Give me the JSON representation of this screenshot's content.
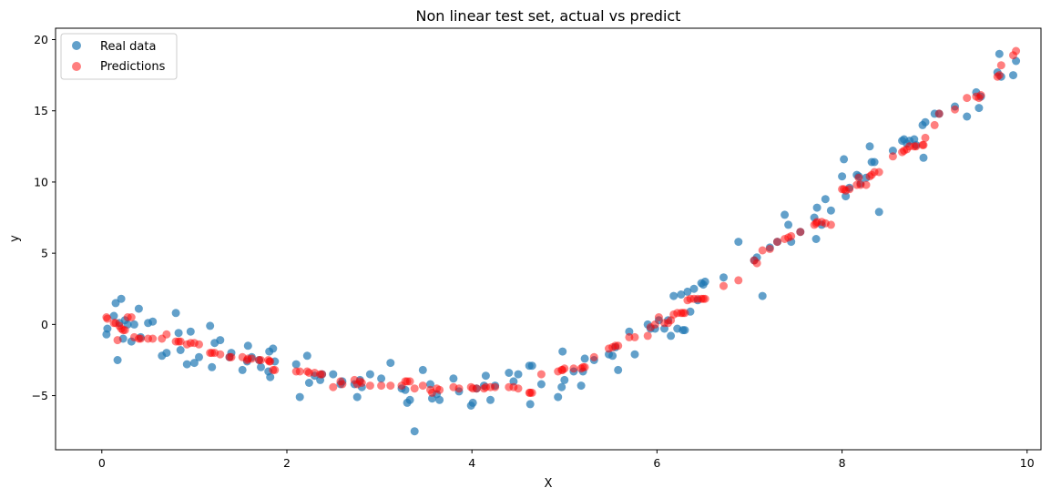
{
  "chart_data": {
    "type": "scatter",
    "title": "Non linear test set, actual vs predict",
    "xlabel": "X",
    "ylabel": "y",
    "xlim": [
      -0.5,
      10.15
    ],
    "ylim": [
      -8.8,
      20.8
    ],
    "xticks": [
      0,
      2,
      4,
      6,
      8,
      10
    ],
    "yticks": [
      -5,
      0,
      5,
      10,
      15,
      20
    ],
    "grid": false,
    "legend_position": "top-left",
    "series": [
      {
        "name": "Real data",
        "color": "#1f77b4",
        "opacity": 0.7,
        "x": [
          0.05,
          0.06,
          0.13,
          0.15,
          0.17,
          0.19,
          0.21,
          0.23,
          0.25,
          0.28,
          0.32,
          0.35,
          0.4,
          0.42,
          0.5,
          0.55,
          0.65,
          0.7,
          0.8,
          0.83,
          0.85,
          0.92,
          0.96,
          1.0,
          1.05,
          1.17,
          1.19,
          1.22,
          1.28,
          1.38,
          1.4,
          1.52,
          1.57,
          1.58,
          1.62,
          1.7,
          1.72,
          1.8,
          1.81,
          1.82,
          1.85,
          1.87,
          2.1,
          2.14,
          2.22,
          2.24,
          2.3,
          2.36,
          2.38,
          2.5,
          2.58,
          2.6,
          2.73,
          2.76,
          2.79,
          2.81,
          2.9,
          3.02,
          3.12,
          3.24,
          3.28,
          3.3,
          3.33,
          3.38,
          3.47,
          3.55,
          3.57,
          3.62,
          3.65,
          3.8,
          3.86,
          3.99,
          4.01,
          4.05,
          4.13,
          4.15,
          4.2,
          4.25,
          4.4,
          4.45,
          4.5,
          4.62,
          4.63,
          4.65,
          4.75,
          4.93,
          4.97,
          4.98,
          5.0,
          5.1,
          5.18,
          5.2,
          5.22,
          5.32,
          5.48,
          5.52,
          5.55,
          5.58,
          5.7,
          5.76,
          5.9,
          5.93,
          5.98,
          6.02,
          6.08,
          6.12,
          6.15,
          6.18,
          6.22,
          6.26,
          6.28,
          6.3,
          6.33,
          6.36,
          6.4,
          6.44,
          6.48,
          6.5,
          6.52,
          6.72,
          6.88,
          7.05,
          7.08,
          7.14,
          7.22,
          7.3,
          7.38,
          7.42,
          7.45,
          7.55,
          7.7,
          7.72,
          7.73,
          7.78,
          7.82,
          7.88,
          8.0,
          8.02,
          8.04,
          8.08,
          8.16,
          8.18,
          8.2,
          8.26,
          8.3,
          8.32,
          8.35,
          8.4,
          8.55,
          8.65,
          8.67,
          8.7,
          8.73,
          8.78,
          8.8,
          8.87,
          8.88,
          8.9,
          9.0,
          9.05,
          9.22,
          9.35,
          9.45,
          9.48,
          9.5,
          9.68,
          9.7,
          9.72,
          9.85,
          9.88
        ],
        "y": [
          -0.7,
          -0.3,
          0.6,
          1.5,
          -2.5,
          0.1,
          1.8,
          -1.0,
          0.3,
          0.0,
          -1.2,
          0.0,
          1.1,
          -0.9,
          0.1,
          0.2,
          -2.2,
          -2.0,
          0.8,
          -0.6,
          -1.8,
          -2.8,
          -0.5,
          -2.7,
          -2.3,
          -0.1,
          -3.0,
          -1.3,
          -1.1,
          -2.3,
          -2.0,
          -3.2,
          -2.6,
          -1.5,
          -2.3,
          -2.5,
          -3.0,
          -3.3,
          -1.9,
          -3.7,
          -1.7,
          -2.6,
          -2.8,
          -5.1,
          -2.2,
          -4.1,
          -3.6,
          -3.9,
          -3.5,
          -3.5,
          -4.2,
          -4.0,
          -4.2,
          -5.1,
          -3.9,
          -4.4,
          -3.5,
          -3.8,
          -2.7,
          -4.5,
          -4.6,
          -5.5,
          -5.3,
          -7.5,
          -3.2,
          -4.2,
          -5.2,
          -4.9,
          -5.3,
          -3.8,
          -4.7,
          -5.7,
          -5.5,
          -4.5,
          -4.3,
          -3.6,
          -5.3,
          -4.3,
          -3.4,
          -4.0,
          -3.5,
          -2.9,
          -5.6,
          -2.9,
          -4.2,
          -5.1,
          -4.4,
          -1.9,
          -3.9,
          -3.3,
          -4.3,
          -3.3,
          -2.4,
          -2.5,
          -2.1,
          -2.2,
          -1.6,
          -3.2,
          -0.5,
          -2.1,
          0.0,
          -0.3,
          -0.3,
          0.3,
          -0.3,
          0.3,
          -0.8,
          2.0,
          -0.3,
          2.1,
          -0.4,
          -0.4,
          2.3,
          0.9,
          2.5,
          1.7,
          2.9,
          2.8,
          3.0,
          3.3,
          5.8,
          4.5,
          4.7,
          2.0,
          5.4,
          5.8,
          7.7,
          7.0,
          5.8,
          6.5,
          7.5,
          6.0,
          8.2,
          7.0,
          8.8,
          8.0,
          10.4,
          11.6,
          9.0,
          9.6,
          10.5,
          10.4,
          9.9,
          10.3,
          12.5,
          11.4,
          11.4,
          7.9,
          12.2,
          12.9,
          13.0,
          12.7,
          12.9,
          13.0,
          12.6,
          14.0,
          11.7,
          14.2,
          14.8,
          14.8,
          15.3,
          14.6,
          16.3,
          15.2,
          16.0,
          17.7,
          19.0,
          17.4,
          17.5,
          18.5
        ]
      },
      {
        "name": "Predictions",
        "color": "#ff0000",
        "opacity": 0.5,
        "x": [
          0.05,
          0.06,
          0.13,
          0.15,
          0.17,
          0.19,
          0.21,
          0.23,
          0.25,
          0.28,
          0.32,
          0.35,
          0.4,
          0.42,
          0.5,
          0.55,
          0.65,
          0.7,
          0.8,
          0.83,
          0.85,
          0.92,
          0.96,
          1.0,
          1.05,
          1.17,
          1.19,
          1.22,
          1.28,
          1.38,
          1.4,
          1.52,
          1.57,
          1.58,
          1.62,
          1.7,
          1.72,
          1.8,
          1.81,
          1.82,
          1.85,
          1.87,
          2.1,
          2.14,
          2.22,
          2.24,
          2.3,
          2.36,
          2.38,
          2.5,
          2.58,
          2.6,
          2.73,
          2.76,
          2.79,
          2.81,
          2.9,
          3.02,
          3.12,
          3.24,
          3.28,
          3.3,
          3.33,
          3.38,
          3.47,
          3.55,
          3.57,
          3.62,
          3.65,
          3.8,
          3.86,
          3.99,
          4.01,
          4.05,
          4.13,
          4.15,
          4.2,
          4.25,
          4.4,
          4.45,
          4.5,
          4.62,
          4.63,
          4.65,
          4.75,
          4.93,
          4.97,
          4.98,
          5.0,
          5.1,
          5.18,
          5.2,
          5.22,
          5.32,
          5.48,
          5.52,
          5.55,
          5.58,
          5.7,
          5.76,
          5.9,
          5.93,
          5.98,
          6.02,
          6.08,
          6.12,
          6.15,
          6.18,
          6.22,
          6.26,
          6.28,
          6.3,
          6.33,
          6.36,
          6.4,
          6.44,
          6.48,
          6.5,
          6.52,
          6.72,
          6.88,
          7.05,
          7.08,
          7.14,
          7.22,
          7.3,
          7.38,
          7.42,
          7.45,
          7.55,
          7.7,
          7.72,
          7.73,
          7.78,
          7.82,
          7.88,
          8.0,
          8.02,
          8.04,
          8.08,
          8.16,
          8.18,
          8.2,
          8.26,
          8.3,
          8.32,
          8.35,
          8.4,
          8.55,
          8.65,
          8.67,
          8.7,
          8.73,
          8.78,
          8.8,
          8.87,
          8.88,
          8.9,
          9.0,
          9.05,
          9.22,
          9.35,
          9.45,
          9.48,
          9.5,
          9.68,
          9.7,
          9.72,
          9.85,
          9.88
        ],
        "y": [
          0.5,
          0.4,
          0.1,
          0.1,
          -1.1,
          -0.1,
          -0.3,
          -0.4,
          -0.4,
          0.5,
          0.5,
          -0.9,
          -1.0,
          -1.0,
          -1.0,
          -1.0,
          -1.0,
          -0.7,
          -1.2,
          -1.2,
          -1.2,
          -1.4,
          -1.3,
          -1.3,
          -1.4,
          -2.0,
          -2.0,
          -2.0,
          -2.1,
          -2.3,
          -2.3,
          -2.3,
          -2.5,
          -2.4,
          -2.4,
          -2.5,
          -2.5,
          -2.5,
          -2.6,
          -2.6,
          -3.2,
          -3.2,
          -3.3,
          -3.3,
          -3.3,
          -3.4,
          -3.4,
          -3.5,
          -3.5,
          -4.4,
          -4.0,
          -4.2,
          -3.9,
          -4.2,
          -4.0,
          -4.1,
          -4.3,
          -4.3,
          -4.3,
          -4.3,
          -4.0,
          -4.0,
          -4.0,
          -4.5,
          -4.3,
          -4.6,
          -4.8,
          -4.5,
          -4.6,
          -4.4,
          -4.5,
          -4.4,
          -4.5,
          -4.5,
          -4.5,
          -4.4,
          -4.4,
          -4.4,
          -4.4,
          -4.4,
          -4.5,
          -4.8,
          -4.8,
          -4.8,
          -3.5,
          -3.3,
          -3.2,
          -3.2,
          -3.1,
          -3.1,
          -3.1,
          -3.0,
          -3.0,
          -2.3,
          -1.7,
          -1.6,
          -1.5,
          -1.5,
          -0.9,
          -0.9,
          -0.8,
          -0.2,
          0.0,
          0.5,
          0.1,
          0.1,
          0.3,
          0.7,
          0.8,
          0.8,
          0.8,
          0.8,
          1.7,
          1.8,
          1.8,
          1.8,
          1.8,
          1.8,
          1.8,
          2.7,
          3.1,
          4.5,
          4.3,
          5.2,
          5.3,
          5.8,
          6.0,
          6.1,
          6.2,
          6.5,
          7.0,
          7.1,
          7.2,
          7.2,
          7.1,
          7.0,
          9.5,
          9.5,
          9.4,
          9.5,
          9.8,
          10.3,
          9.8,
          9.8,
          10.4,
          10.5,
          10.7,
          10.7,
          11.8,
          12.1,
          12.2,
          12.3,
          12.5,
          12.5,
          12.5,
          12.6,
          12.6,
          13.1,
          14.0,
          14.8,
          15.1,
          15.9,
          16.0,
          15.9,
          16.1,
          17.4,
          17.5,
          18.2,
          18.9,
          19.2
        ]
      }
    ]
  }
}
